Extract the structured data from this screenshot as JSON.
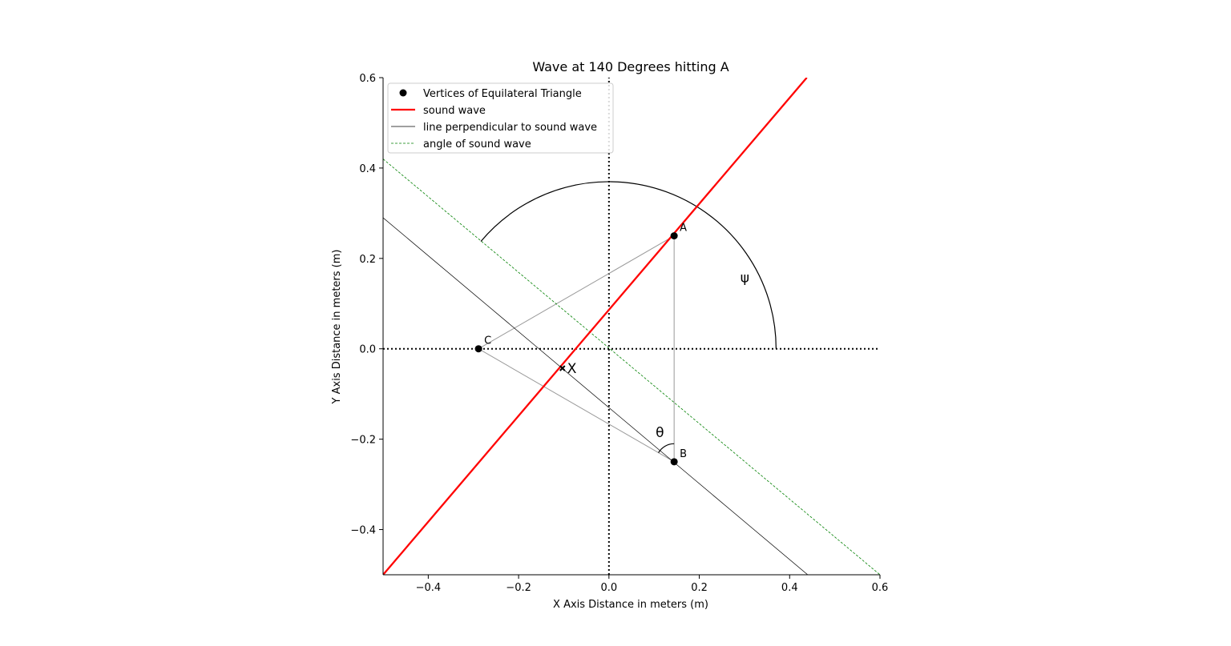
{
  "chart_data": {
    "type": "line",
    "title": "Wave at 140 Degrees hitting A",
    "xlabel": "X Axis Distance in meters (m)",
    "ylabel": "Y Axis Distance in meters (m)",
    "xlim": [
      -0.5,
      0.6
    ],
    "ylim": [
      -0.5,
      0.6
    ],
    "xticks": [
      -0.4,
      -0.2,
      0.0,
      0.2,
      0.4,
      0.6
    ],
    "yticks": [
      -0.4,
      -0.2,
      0.0,
      0.2,
      0.4,
      0.6
    ],
    "xtick_labels": [
      "−0.4",
      "−0.2",
      "0.0",
      "0.2",
      "0.4",
      "0.6"
    ],
    "ytick_labels": [
      "−0.4",
      "−0.2",
      "0.0",
      "0.2",
      "0.4",
      "0.6"
    ],
    "legend_position": "upper left",
    "legend": [
      {
        "label": "Vertices of Equilateral Triangle",
        "style": "marker",
        "color": "#000000"
      },
      {
        "label": "sound wave",
        "style": "thick-line",
        "color": "#ff0000"
      },
      {
        "label": "line perpendicular to sound wave",
        "style": "thin-line",
        "color": "#000000"
      },
      {
        "label": "angle of sound wave",
        "style": "dashed-line",
        "color": "#008000"
      }
    ],
    "vertices": [
      {
        "name": "A",
        "x": 0.1443,
        "y": 0.25
      },
      {
        "name": "B",
        "x": 0.1443,
        "y": -0.25
      },
      {
        "name": "C",
        "x": -0.2887,
        "y": 0.0
      }
    ],
    "intersection_point": {
      "name": "X",
      "x": -0.103,
      "y": -0.043
    },
    "sound_wave": {
      "x": [
        -0.5,
        0.438
      ],
      "y": [
        -0.5,
        0.6
      ]
    },
    "perpendicular_line": {
      "x": [
        -0.5,
        0.44
      ],
      "y": [
        0.29,
        -0.5
      ]
    },
    "angle_line": {
      "x": [
        -0.5,
        0.6
      ],
      "y": [
        0.42,
        -0.5
      ]
    },
    "reference_axes": {
      "x": [
        -0.5,
        0.6
      ],
      "y": [
        -0.5,
        0.6
      ]
    },
    "angle_arc_psi": {
      "label": "ψ",
      "radius": 0.37,
      "start_deg": 0,
      "end_deg": 140
    },
    "angle_arc_theta": {
      "label": "θ",
      "radius": 0.04,
      "vertex": "B"
    },
    "colors": {
      "sound_wave": "#ff0000",
      "perpendicular": "#000000",
      "angle_line": "#008000",
      "triangle": "#999999"
    }
  }
}
